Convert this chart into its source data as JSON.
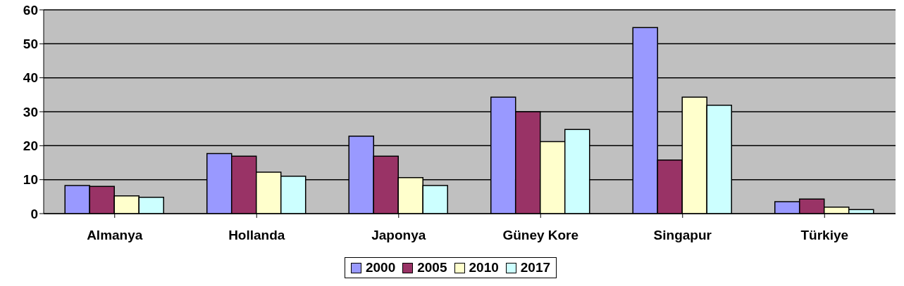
{
  "chart_data": {
    "type": "bar",
    "categories": [
      "Almanya",
      "Hollanda",
      "Japonya",
      "Güney Kore",
      "Singapur",
      "Türkiye"
    ],
    "series": [
      {
        "name": "2000",
        "color": "#9999ff",
        "values": [
          8.3,
          17.7,
          22.8,
          34.3,
          54.8,
          3.5
        ]
      },
      {
        "name": "2005",
        "color": "#993366",
        "values": [
          8,
          16.9,
          16.9,
          30,
          15.8,
          4.3
        ]
      },
      {
        "name": "2010",
        "color": "#ffffcc",
        "values": [
          5.2,
          12.2,
          10.6,
          21.2,
          34.3,
          1.9
        ]
      },
      {
        "name": "2017",
        "color": "#ccffff",
        "values": [
          4.8,
          11,
          8.3,
          24.8,
          31.9,
          1.2
        ]
      }
    ],
    "ylim": [
      0,
      60
    ],
    "yticks": [
      0,
      10,
      20,
      30,
      40,
      50,
      60
    ],
    "grid": "y",
    "legend": "bottom"
  }
}
